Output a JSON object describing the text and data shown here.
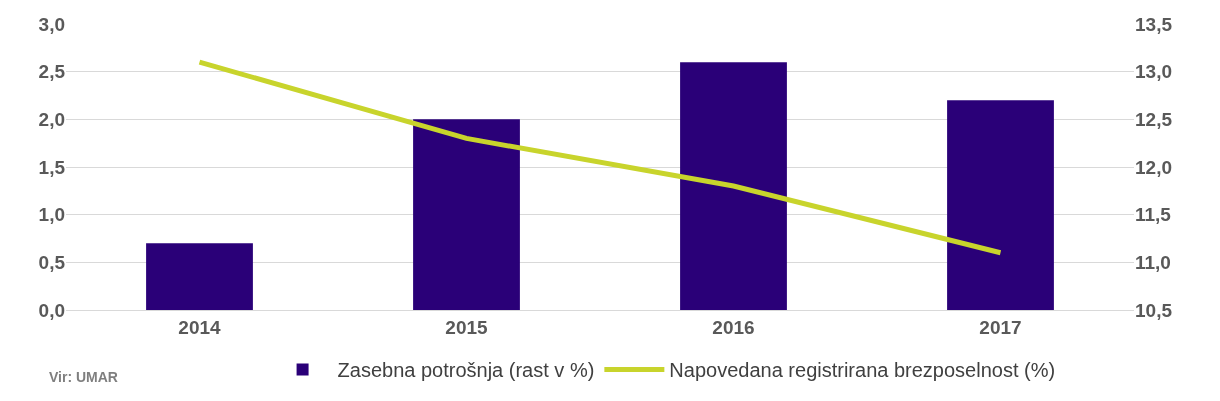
{
  "chart_data": {
    "type": "bar",
    "categories": [
      "2014",
      "2015",
      "2016",
      "2017"
    ],
    "series": [
      {
        "name": "Zasebna potrošnja (rast v %)",
        "color": "#2a0078",
        "values": [
          0.7,
          2.0,
          2.6,
          2.2
        ]
      },
      {
        "name": "Napovedana registrirana brezposelnost (%)",
        "color": "#c8d42c",
        "type": "line",
        "axis": "y2",
        "values": [
          13.1,
          12.3,
          11.8,
          11.1
        ]
      }
    ],
    "ylim": [
      0,
      3
    ],
    "yticks": [
      {
        "value": 0,
        "label": "0,0"
      },
      {
        "value": 0.5,
        "label": "0,5"
      },
      {
        "value": 1,
        "label": "1,0"
      },
      {
        "value": 1.5,
        "label": "1,5"
      },
      {
        "value": 2,
        "label": "2,0"
      },
      {
        "value": 2.5,
        "label": "2,5"
      },
      {
        "value": 3,
        "label": "3,0"
      }
    ],
    "y2lim": [
      10.5,
      13.5
    ],
    "y2ticks": [
      {
        "value": 10.5,
        "label": "10,5"
      },
      {
        "value": 11,
        "label": "11,0"
      },
      {
        "value": 11.5,
        "label": "11,5"
      },
      {
        "value": 12,
        "label": "12,0"
      },
      {
        "value": 12.5,
        "label": "12,5"
      },
      {
        "value": 13,
        "label": "13,0"
      },
      {
        "value": 13.5,
        "label": "13,5"
      }
    ],
    "grid": "y",
    "legend": "bottom",
    "marker": "none",
    "line_style": "solid",
    "annotations": [
      "Vir: UMAR"
    ]
  }
}
